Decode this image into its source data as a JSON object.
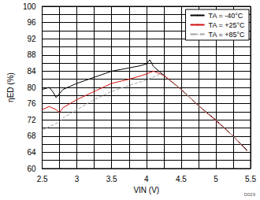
{
  "chart_data": {
    "type": "line",
    "x_label": "VIN (V)",
    "y_label": "ηED (%)",
    "annotation": "D029",
    "xlim": [
      2.5,
      5.5
    ],
    "xticks": [
      2.5,
      3,
      3.5,
      4,
      4.5,
      5,
      5.5
    ],
    "ylim": [
      60,
      100
    ],
    "yticks": [
      60,
      64,
      68,
      72,
      76,
      80,
      84,
      88,
      92,
      96,
      100
    ],
    "grid": true,
    "legend": "upper right",
    "series": [
      {
        "name": "TA = -40°C",
        "color": "#000000",
        "line_style": "solid",
        "x": [
          2.5,
          2.6,
          2.65,
          2.7,
          2.75,
          2.8,
          3.0,
          3.25,
          3.5,
          3.75,
          3.9,
          4.0,
          4.05,
          4.1,
          4.25,
          4.5,
          4.75,
          5.0,
          5.25,
          5.45
        ],
        "values": [
          79.5,
          80,
          79,
          77.5,
          78.5,
          79.5,
          81,
          82.5,
          84,
          84.8,
          85.3,
          85.8,
          86.8,
          85.2,
          83,
          79.5,
          75.5,
          72,
          68,
          64.5
        ]
      },
      {
        "name": "TA = +25°C",
        "color": "#d01010",
        "line_style": "solid",
        "x": [
          2.5,
          2.6,
          2.7,
          2.75,
          2.8,
          3.0,
          3.25,
          3.5,
          3.75,
          4.0,
          4.1,
          4.15,
          4.25,
          4.5,
          4.75,
          5.0,
          5.25,
          5.45
        ],
        "values": [
          74.5,
          75.3,
          74.5,
          73.8,
          75,
          77,
          79,
          81,
          82,
          83.3,
          84,
          83.7,
          83,
          79.5,
          75.5,
          71.8,
          68,
          64.3
        ]
      },
      {
        "name": "TA = +85°C",
        "color": "#a0a0a0",
        "line_style": "dashed",
        "x": [
          2.5,
          2.75,
          2.8,
          3.0,
          3.25,
          3.5,
          3.75,
          4.0,
          4.2,
          4.25,
          4.5,
          4.75,
          5.0,
          5.25,
          5.45
        ],
        "values": [
          69.5,
          71.5,
          72.5,
          74.5,
          77,
          79,
          80.5,
          81.8,
          83.3,
          82.8,
          79.5,
          75.5,
          72,
          68,
          64.3
        ]
      }
    ]
  }
}
